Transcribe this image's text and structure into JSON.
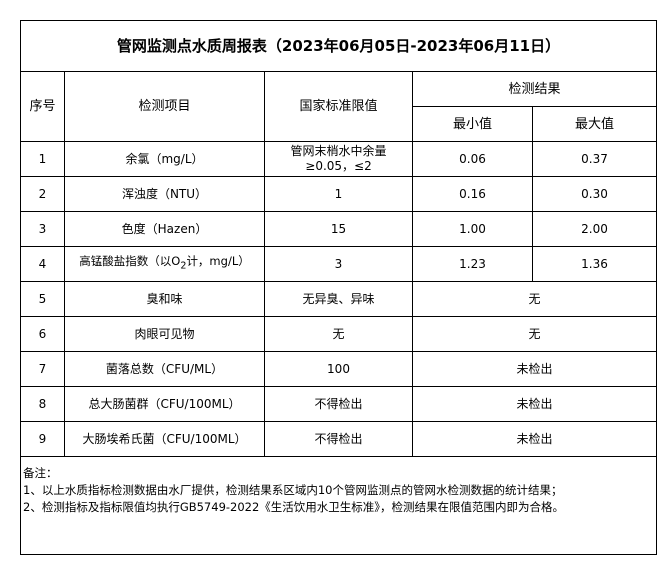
{
  "title": "管网监测点水质周报表（2023年06月05日-2023年06月11日）",
  "headers": {
    "index": "序号",
    "item": "检测项目",
    "standard": "国家标准限值",
    "result": "检测结果",
    "min": "最小值",
    "max": "最大值"
  },
  "rows": [
    {
      "index": "1",
      "item": "余氯（mg/L）",
      "standard": "管网末梢水中余量≥0.05，≤2",
      "min": "0.06",
      "max": "0.37"
    },
    {
      "index": "2",
      "item": "浑浊度（NTU）",
      "standard": "1",
      "min": "0.16",
      "max": "0.30"
    },
    {
      "index": "3",
      "item": "色度（Hazen）",
      "standard": "15",
      "min": "1.00",
      "max": "2.00"
    },
    {
      "index": "4",
      "item_prefix": "高锰酸盐指数（以O",
      "item_sub": "2",
      "item_suffix": "计，mg/L）",
      "standard": "3",
      "min": "1.23",
      "max": "1.36"
    },
    {
      "index": "5",
      "item": "臭和味",
      "standard": "无异臭、异味",
      "result": "无"
    },
    {
      "index": "6",
      "item": "肉眼可见物",
      "standard": "无",
      "result": "无"
    },
    {
      "index": "7",
      "item": "菌落总数（CFU/ML）",
      "standard": "100",
      "result": "未检出"
    },
    {
      "index": "8",
      "item": "总大肠菌群（CFU/100ML）",
      "standard": "不得检出",
      "result": "未检出"
    },
    {
      "index": "9",
      "item": "大肠埃希氏菌（CFU/100ML）",
      "standard": "不得检出",
      "result": "未检出"
    }
  ],
  "notes": {
    "label": "备注：",
    "lines": [
      "1、以上水质指标检测数据由水厂提供，检测结果系区域内10个管网监测点的管网水检测数据的统计结果；",
      "2、检测指标及指标限值均执行GB5749-2022《生活饮用水卫生标准》，检测结果在限值范围内即为合格。"
    ]
  }
}
